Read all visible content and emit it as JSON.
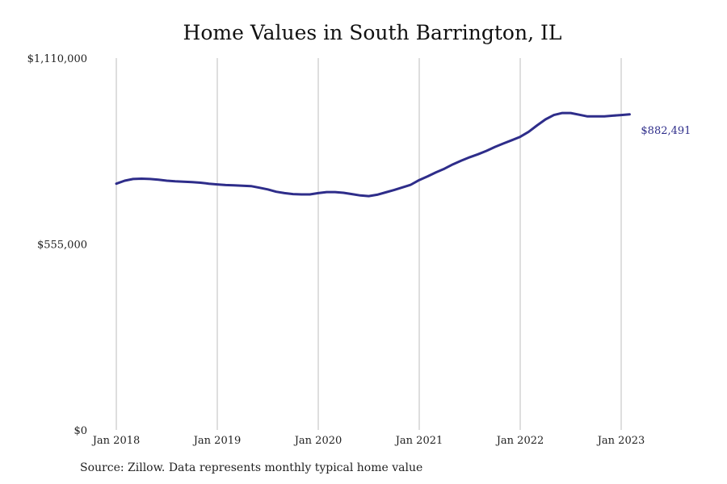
{
  "chart_data": {
    "type": "line",
    "title": "Home Values in South Barrington, IL",
    "source_note": "Source: Zillow. Data represents monthly typical home value",
    "xlabel": "",
    "ylabel": "",
    "x_ticks": [
      "Jan 2018",
      "Jan 2019",
      "Jan 2020",
      "Jan 2021",
      "Jan 2022",
      "Jan 2023"
    ],
    "y_ticks": [
      "$0",
      "$555,000",
      "$1,110,000"
    ],
    "ylim": [
      0,
      1110000
    ],
    "xlim": [
      "2018-01",
      "2023-12"
    ],
    "grid": "vertical",
    "line_color": "#2e2d8a",
    "end_label": "$882,491",
    "series": [
      {
        "x": [
          "2018-01",
          "2018-02",
          "2018-03",
          "2018-04",
          "2018-05",
          "2018-06",
          "2018-07",
          "2018-08",
          "2018-09",
          "2018-10",
          "2018-11",
          "2018-12",
          "2019-01",
          "2019-02",
          "2019-03",
          "2019-04",
          "2019-05",
          "2019-06",
          "2019-07",
          "2019-08",
          "2019-09",
          "2019-10",
          "2019-11",
          "2019-12",
          "2020-01",
          "2020-02",
          "2020-03",
          "2020-04",
          "2020-05",
          "2020-06",
          "2020-07",
          "2020-08",
          "2020-09",
          "2020-10",
          "2020-11",
          "2020-12",
          "2021-01",
          "2021-02",
          "2021-03",
          "2021-04",
          "2021-05",
          "2021-06",
          "2021-07",
          "2021-08",
          "2021-09",
          "2021-10",
          "2021-11",
          "2021-12",
          "2022-01",
          "2022-02",
          "2022-03",
          "2022-04",
          "2022-05",
          "2022-06",
          "2022-07",
          "2022-08",
          "2022-09",
          "2022-10",
          "2022-11",
          "2022-12",
          "2023-01",
          "2023-02"
        ],
        "values": [
          735000,
          744000,
          749000,
          750000,
          749000,
          747000,
          744000,
          742000,
          741000,
          740000,
          738000,
          735000,
          733000,
          731000,
          730000,
          729000,
          728000,
          723000,
          718000,
          711000,
          707000,
          704000,
          703000,
          703000,
          707000,
          710000,
          710000,
          708000,
          704000,
          700000,
          698000,
          702000,
          709000,
          716000,
          724000,
          732000,
          746000,
          757000,
          769000,
          780000,
          793000,
          804000,
          814000,
          823000,
          833000,
          845000,
          855000,
          865000,
          875000,
          890000,
          909000,
          927000,
          940000,
          946000,
          946000,
          941000,
          936000,
          936000,
          936000,
          938000,
          940000,
          882491
        ]
      }
    ]
  }
}
